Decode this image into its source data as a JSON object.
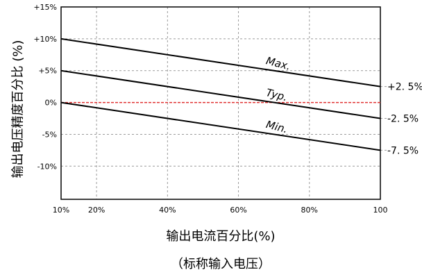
{
  "chart_data": {
    "type": "line",
    "title": "",
    "subtitle": "（标称输入电压）",
    "xlabel": "输出电流百分比(%)",
    "ylabel": "输出电压精度百分比 (%)",
    "xlim": [
      10,
      100
    ],
    "ylim": [
      -15,
      15
    ],
    "grid": true,
    "x_ticks": [
      {
        "value": 10,
        "label": "10%"
      },
      {
        "value": 20,
        "label": "20%"
      },
      {
        "value": 40,
        "label": "40%"
      },
      {
        "value": 60,
        "label": "60%"
      },
      {
        "value": 80,
        "label": "80%"
      },
      {
        "value": 100,
        "label": "100"
      }
    ],
    "y_ticks": [
      {
        "value": 15,
        "label": "+15%"
      },
      {
        "value": 10,
        "label": "+10%"
      },
      {
        "value": 5,
        "label": "+5%"
      },
      {
        "value": 0,
        "label": "0%"
      },
      {
        "value": -5,
        "label": "-5%"
      },
      {
        "value": -10,
        "label": "-10%"
      }
    ],
    "reference_line": {
      "y": 0,
      "color": "#e03030"
    },
    "series": [
      {
        "name": "Max.",
        "x": [
          10,
          100
        ],
        "y": [
          10,
          2.5
        ],
        "end_label": "+2. 5%"
      },
      {
        "name": "Typ.",
        "x": [
          10,
          100
        ],
        "y": [
          5,
          -2.5
        ],
        "end_label": "-2. 5%"
      },
      {
        "name": "Min.",
        "x": [
          10,
          100
        ],
        "y": [
          0,
          -7.5
        ],
        "end_label": "-7. 5%"
      }
    ]
  }
}
